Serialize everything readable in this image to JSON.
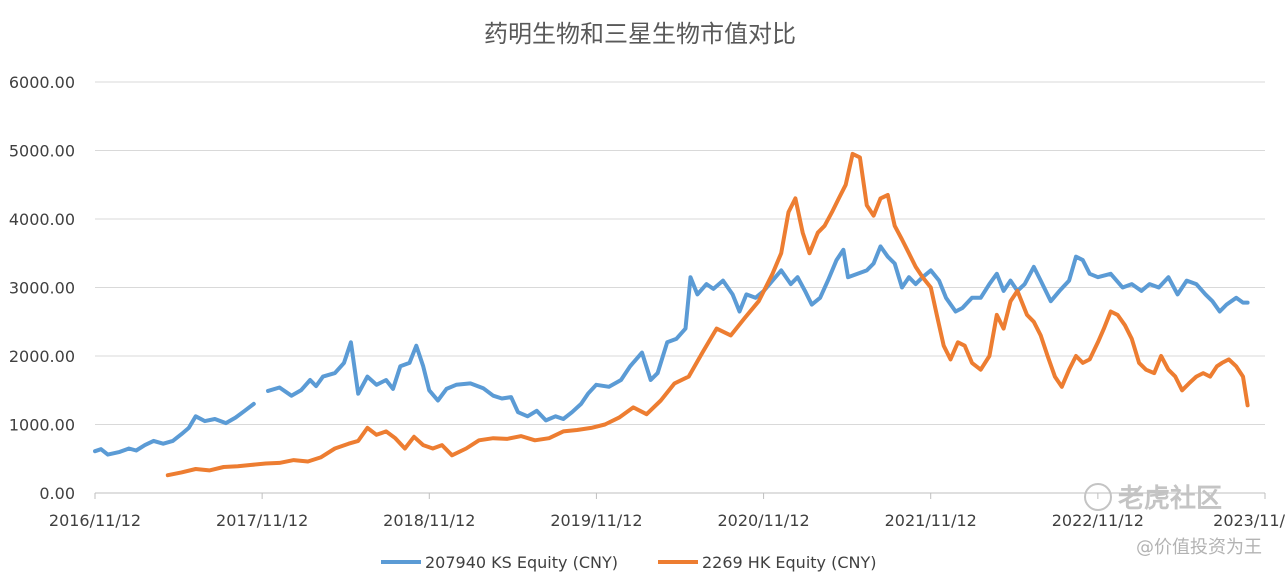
{
  "chart_data": {
    "type": "line",
    "title": "药明生物和三星生物市值对比",
    "xlabel": "",
    "ylabel": "",
    "ylim": [
      0,
      6000
    ],
    "yticks": [
      "0.00",
      "1000.00",
      "2000.00",
      "3000.00",
      "4000.00",
      "5000.00",
      "6000.00"
    ],
    "xticks": [
      "2016/11/12",
      "2017/11/12",
      "2018/11/12",
      "2019/11/12",
      "2020/11/12",
      "2021/11/12",
      "2022/11/12",
      "2023/11/"
    ],
    "grid": "horizontal",
    "legend": "bottom",
    "series": [
      {
        "name": "207940 KS Equity (CNY)",
        "color": "#5B9BD5",
        "points": [
          [
            "2016-11-12",
            610
          ],
          [
            "2016-11-25",
            640
          ],
          [
            "2016-12-10",
            560
          ],
          [
            "2017-01-05",
            600
          ],
          [
            "2017-01-25",
            650
          ],
          [
            "2017-02-10",
            620
          ],
          [
            "2017-03-01",
            700
          ],
          [
            "2017-03-20",
            760
          ],
          [
            "2017-04-10",
            720
          ],
          [
            "2017-05-01",
            760
          ],
          [
            "2017-05-20",
            860
          ],
          [
            "2017-06-05",
            950
          ],
          [
            "2017-06-20",
            1120
          ],
          [
            "2017-07-10",
            1050
          ],
          [
            "2017-08-01",
            1080
          ],
          [
            "2017-08-25",
            1020
          ],
          [
            "2017-09-15",
            1100
          ],
          [
            "2017-10-05",
            1200
          ],
          [
            "2017-10-25",
            1300
          ],
          null,
          [
            "2017-11-25",
            1490
          ],
          [
            "2017-12-20",
            1540
          ],
          [
            "2018-01-15",
            1420
          ],
          [
            "2018-02-05",
            1500
          ],
          [
            "2018-02-25",
            1650
          ],
          [
            "2018-03-10",
            1560
          ],
          [
            "2018-03-25",
            1700
          ],
          [
            "2018-04-20",
            1750
          ],
          [
            "2018-05-10",
            1900
          ],
          [
            "2018-05-25",
            2200
          ],
          [
            "2018-06-10",
            1450
          ],
          [
            "2018-06-30",
            1700
          ],
          [
            "2018-07-20",
            1580
          ],
          [
            "2018-08-10",
            1650
          ],
          [
            "2018-08-25",
            1520
          ],
          [
            "2018-09-10",
            1850
          ],
          [
            "2018-09-30",
            1900
          ],
          [
            "2018-10-15",
            2150
          ],
          [
            "2018-10-30",
            1850
          ],
          [
            "2018-11-12",
            1500
          ],
          [
            "2018-12-01",
            1350
          ],
          [
            "2018-12-20",
            1520
          ],
          [
            "2019-01-10",
            1580
          ],
          [
            "2019-02-10",
            1600
          ],
          [
            "2019-03-10",
            1530
          ],
          [
            "2019-04-01",
            1420
          ],
          [
            "2019-04-20",
            1380
          ],
          [
            "2019-05-10",
            1400
          ],
          [
            "2019-05-25",
            1180
          ],
          [
            "2019-06-15",
            1120
          ],
          [
            "2019-07-05",
            1200
          ],
          [
            "2019-07-25",
            1060
          ],
          [
            "2019-08-15",
            1120
          ],
          [
            "2019-09-01",
            1080
          ],
          [
            "2019-09-20",
            1180
          ],
          [
            "2019-10-10",
            1300
          ],
          [
            "2019-10-25",
            1450
          ],
          [
            "2019-11-12",
            1580
          ],
          [
            "2019-12-10",
            1550
          ],
          [
            "2020-01-05",
            1650
          ],
          [
            "2020-01-25",
            1850
          ],
          [
            "2020-02-20",
            2050
          ],
          [
            "2020-03-10",
            1650
          ],
          [
            "2020-03-25",
            1750
          ],
          [
            "2020-04-15",
            2200
          ],
          [
            "2020-05-05",
            2250
          ],
          [
            "2020-05-25",
            2400
          ],
          [
            "2020-06-05",
            3150
          ],
          [
            "2020-06-20",
            2900
          ],
          [
            "2020-07-10",
            3050
          ],
          [
            "2020-07-25",
            2980
          ],
          [
            "2020-08-15",
            3100
          ],
          [
            "2020-09-05",
            2900
          ],
          [
            "2020-09-20",
            2650
          ],
          [
            "2020-10-05",
            2900
          ],
          [
            "2020-10-25",
            2850
          ],
          [
            "2020-11-12",
            2950
          ],
          [
            "2020-12-01",
            3100
          ],
          [
            "2020-12-20",
            3250
          ],
          [
            "2021-01-10",
            3050
          ],
          [
            "2021-01-25",
            3150
          ],
          [
            "2021-02-10",
            2950
          ],
          [
            "2021-02-25",
            2750
          ],
          [
            "2021-03-15",
            2850
          ],
          [
            "2021-04-01",
            3100
          ],
          [
            "2021-04-20",
            3400
          ],
          [
            "2021-05-05",
            3550
          ],
          [
            "2021-05-15",
            3150
          ],
          [
            "2021-06-05",
            3200
          ],
          [
            "2021-06-25",
            3250
          ],
          [
            "2021-07-10",
            3350
          ],
          [
            "2021-07-25",
            3600
          ],
          [
            "2021-08-10",
            3450
          ],
          [
            "2021-08-25",
            3350
          ],
          [
            "2021-09-10",
            3000
          ],
          [
            "2021-09-25",
            3150
          ],
          [
            "2021-10-10",
            3050
          ],
          [
            "2021-10-25",
            3150
          ],
          [
            "2021-11-12",
            3250
          ],
          [
            "2021-11-30",
            3100
          ],
          [
            "2021-12-15",
            2850
          ],
          [
            "2022-01-05",
            2650
          ],
          [
            "2022-01-20",
            2700
          ],
          [
            "2022-02-10",
            2850
          ],
          [
            "2022-03-01",
            2850
          ],
          [
            "2022-03-20",
            3050
          ],
          [
            "2022-04-05",
            3200
          ],
          [
            "2022-04-20",
            2950
          ],
          [
            "2022-05-05",
            3100
          ],
          [
            "2022-05-20",
            2950
          ],
          [
            "2022-06-05",
            3050
          ],
          [
            "2022-06-25",
            3300
          ],
          [
            "2022-07-10",
            3100
          ],
          [
            "2022-08-01",
            2800
          ],
          [
            "2022-08-20",
            2950
          ],
          [
            "2022-09-10",
            3100
          ],
          [
            "2022-09-25",
            3450
          ],
          [
            "2022-10-10",
            3400
          ],
          [
            "2022-10-25",
            3200
          ],
          [
            "2022-11-12",
            3150
          ],
          [
            "2022-12-10",
            3200
          ],
          [
            "2023-01-05",
            3000
          ],
          [
            "2023-01-25",
            3050
          ],
          [
            "2023-02-15",
            2950
          ],
          [
            "2023-03-05",
            3050
          ],
          [
            "2023-03-25",
            3000
          ],
          [
            "2023-04-15",
            3150
          ],
          [
            "2023-05-05",
            2900
          ],
          [
            "2023-05-25",
            3100
          ],
          [
            "2023-06-15",
            3050
          ],
          [
            "2023-07-05",
            2900
          ],
          [
            "2023-07-20",
            2800
          ],
          [
            "2023-08-05",
            2650
          ],
          [
            "2023-08-20",
            2750
          ],
          [
            "2023-09-10",
            2850
          ],
          [
            "2023-09-25",
            2780
          ],
          [
            "2023-10-05",
            2780
          ]
        ]
      },
      {
        "name": "2269 HK Equity (CNY)",
        "color": "#ED7D31",
        "points": [
          [
            "2017-04-20",
            260
          ],
          [
            "2017-05-20",
            300
          ],
          [
            "2017-06-20",
            350
          ],
          [
            "2017-07-20",
            330
          ],
          [
            "2017-08-20",
            380
          ],
          [
            "2017-09-20",
            390
          ],
          [
            "2017-10-20",
            410
          ],
          [
            "2017-11-20",
            430
          ],
          [
            "2017-12-20",
            440
          ],
          [
            "2018-01-20",
            480
          ],
          [
            "2018-02-20",
            460
          ],
          [
            "2018-03-20",
            520
          ],
          [
            "2018-04-20",
            650
          ],
          [
            "2018-05-20",
            720
          ],
          [
            "2018-06-10",
            760
          ],
          [
            "2018-06-30",
            950
          ],
          [
            "2018-07-20",
            850
          ],
          [
            "2018-08-10",
            900
          ],
          [
            "2018-08-30",
            800
          ],
          [
            "2018-09-20",
            650
          ],
          [
            "2018-10-10",
            820
          ],
          [
            "2018-10-30",
            700
          ],
          [
            "2018-11-20",
            650
          ],
          [
            "2018-12-10",
            700
          ],
          [
            "2019-01-01",
            550
          ],
          [
            "2019-02-01",
            650
          ],
          [
            "2019-03-01",
            770
          ],
          [
            "2019-04-01",
            800
          ],
          [
            "2019-05-01",
            790
          ],
          [
            "2019-06-01",
            830
          ],
          [
            "2019-07-01",
            770
          ],
          [
            "2019-08-01",
            800
          ],
          [
            "2019-09-01",
            900
          ],
          [
            "2019-10-01",
            920
          ],
          [
            "2019-11-01",
            950
          ],
          [
            "2019-12-01",
            1000
          ],
          [
            "2020-01-01",
            1100
          ],
          [
            "2020-02-01",
            1250
          ],
          [
            "2020-03-01",
            1150
          ],
          [
            "2020-04-01",
            1350
          ],
          [
            "2020-05-01",
            1600
          ],
          [
            "2020-06-01",
            1700
          ],
          [
            "2020-07-01",
            2050
          ],
          [
            "2020-08-01",
            2400
          ],
          [
            "2020-09-01",
            2300
          ],
          [
            "2020-10-01",
            2550
          ],
          [
            "2020-11-01",
            2800
          ],
          [
            "2020-12-01",
            3200
          ],
          [
            "2020-12-20",
            3500
          ],
          [
            "2021-01-05",
            4100
          ],
          [
            "2021-01-20",
            4300
          ],
          [
            "2021-02-05",
            3800
          ],
          [
            "2021-02-20",
            3500
          ],
          [
            "2021-03-10",
            3800
          ],
          [
            "2021-03-25",
            3900
          ],
          [
            "2021-04-10",
            4100
          ],
          [
            "2021-04-25",
            4300
          ],
          [
            "2021-05-10",
            4500
          ],
          [
            "2021-05-25",
            4950
          ],
          [
            "2021-06-10",
            4900
          ],
          [
            "2021-06-25",
            4200
          ],
          [
            "2021-07-10",
            4050
          ],
          [
            "2021-07-25",
            4300
          ],
          [
            "2021-08-10",
            4350
          ],
          [
            "2021-08-25",
            3900
          ],
          [
            "2021-09-10",
            3700
          ],
          [
            "2021-09-25",
            3500
          ],
          [
            "2021-10-10",
            3300
          ],
          [
            "2021-10-25",
            3150
          ],
          [
            "2021-11-12",
            3000
          ],
          [
            "2021-11-25",
            2600
          ],
          [
            "2021-12-10",
            2150
          ],
          [
            "2021-12-25",
            1950
          ],
          [
            "2022-01-10",
            2200
          ],
          [
            "2022-01-25",
            2150
          ],
          [
            "2022-02-10",
            1900
          ],
          [
            "2022-03-01",
            1800
          ],
          [
            "2022-03-20",
            2000
          ],
          [
            "2022-04-05",
            2600
          ],
          [
            "2022-04-20",
            2400
          ],
          [
            "2022-05-05",
            2800
          ],
          [
            "2022-05-20",
            2950
          ],
          [
            "2022-06-10",
            2600
          ],
          [
            "2022-06-25",
            2500
          ],
          [
            "2022-07-10",
            2300
          ],
          [
            "2022-07-25",
            2000
          ],
          [
            "2022-08-10",
            1700
          ],
          [
            "2022-08-25",
            1550
          ],
          [
            "2022-09-10",
            1800
          ],
          [
            "2022-09-25",
            2000
          ],
          [
            "2022-10-10",
            1900
          ],
          [
            "2022-10-25",
            1950
          ],
          [
            "2022-11-12",
            2200
          ],
          [
            "2022-11-25",
            2400
          ],
          [
            "2022-12-10",
            2650
          ],
          [
            "2022-12-25",
            2600
          ],
          [
            "2023-01-10",
            2450
          ],
          [
            "2023-01-25",
            2250
          ],
          [
            "2023-02-10",
            1900
          ],
          [
            "2023-02-25",
            1800
          ],
          [
            "2023-03-15",
            1750
          ],
          [
            "2023-03-30",
            2000
          ],
          [
            "2023-04-15",
            1800
          ],
          [
            "2023-04-30",
            1700
          ],
          [
            "2023-05-15",
            1500
          ],
          [
            "2023-05-30",
            1600
          ],
          [
            "2023-06-15",
            1700
          ],
          [
            "2023-06-30",
            1750
          ],
          [
            "2023-07-15",
            1700
          ],
          [
            "2023-07-30",
            1850
          ],
          [
            "2023-08-10",
            1900
          ],
          [
            "2023-08-25",
            1950
          ],
          [
            "2023-09-10",
            1850
          ],
          [
            "2023-09-25",
            1700
          ],
          [
            "2023-10-05",
            1280
          ]
        ]
      }
    ]
  },
  "watermark": {
    "brand": "老虎社区",
    "author": "@价值投资为王"
  }
}
